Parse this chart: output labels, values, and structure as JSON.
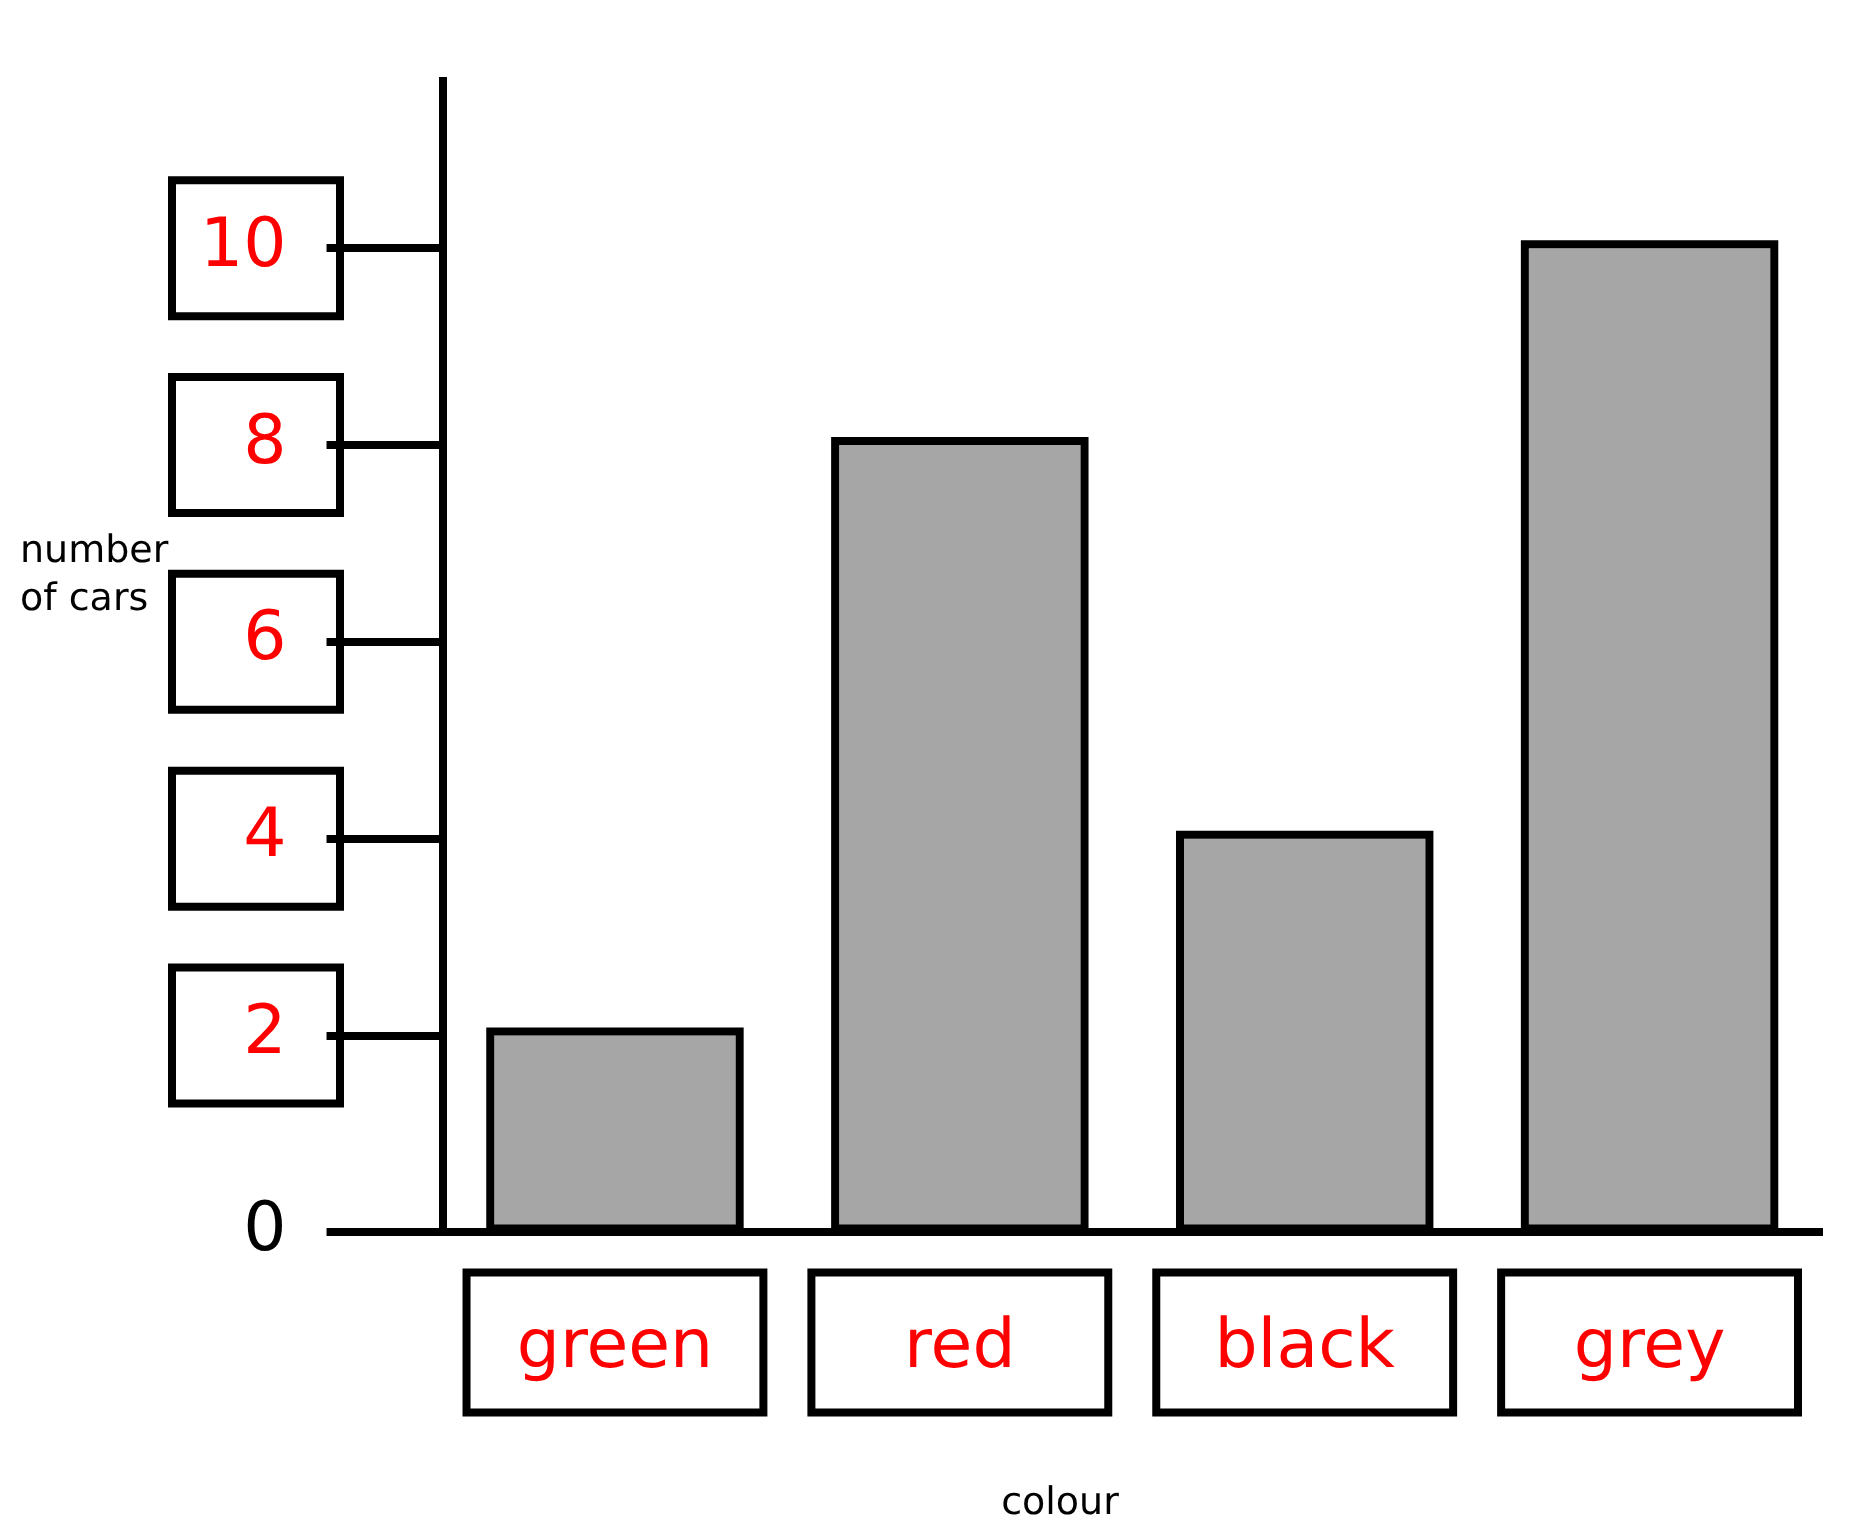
{
  "chart_data": {
    "type": "bar",
    "xlabel": "colour",
    "ylabel": "number of cars",
    "categories": [
      "green",
      "red",
      "black",
      "grey"
    ],
    "values": [
      2,
      8,
      4,
      10
    ],
    "color": "#a6a6a6",
    "ylim": [
      0,
      11.7
    ],
    "yticks": [
      0,
      2,
      4,
      6,
      8,
      10
    ],
    "grid": false,
    "legend": false
  }
}
